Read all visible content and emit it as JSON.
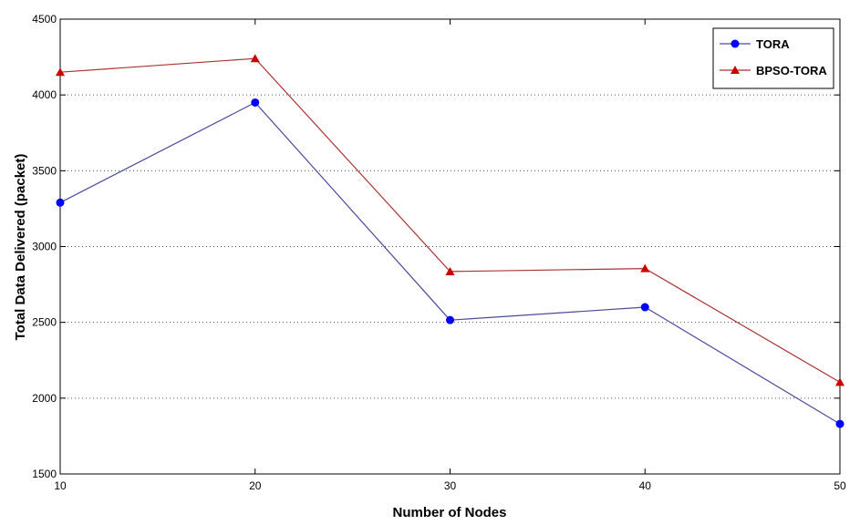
{
  "chart_data": {
    "type": "line",
    "title": "",
    "xlabel": "Number of Nodes",
    "ylabel": "Total Data Delivered (packet)",
    "x": [
      10,
      20,
      30,
      40,
      50
    ],
    "xlim": [
      10,
      50
    ],
    "ylim": [
      1500,
      4500
    ],
    "xticks": [
      "10",
      "20",
      "30",
      "40",
      "50"
    ],
    "yticks": [
      "1500",
      "2000",
      "2500",
      "3000",
      "3500",
      "4000",
      "4500"
    ],
    "grid": "horizontal dotted",
    "legend_position": "top-right",
    "series": [
      {
        "name": "TORA",
        "values": [
          3290,
          3950,
          2515,
          2600,
          1830
        ],
        "color": "#0000ff",
        "line_color": "#4a4a9a",
        "marker": "circle"
      },
      {
        "name": "BPSO-TORA",
        "values": [
          4150,
          4240,
          2835,
          2855,
          2105
        ],
        "color": "#cc0000",
        "line_color": "#aa3333",
        "marker": "triangle"
      }
    ]
  }
}
